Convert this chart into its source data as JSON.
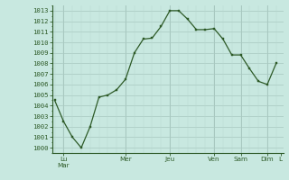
{
  "y_values": [
    1004.5,
    1002.5,
    1001.0,
    1000.0,
    1002.0,
    1004.8,
    1005.0,
    1005.5,
    1006.5,
    1009.0,
    1010.3,
    1010.4,
    1011.5,
    1013.0,
    1013.0,
    1012.2,
    1011.2,
    1011.2,
    1011.3,
    1010.3,
    1008.8,
    1008.8,
    1007.5,
    1006.3,
    1006.0,
    1008.0
  ],
  "ylim": [
    999.5,
    1013.5
  ],
  "yticks": [
    1000,
    1001,
    1002,
    1003,
    1004,
    1005,
    1006,
    1007,
    1008,
    1009,
    1010,
    1011,
    1012,
    1013
  ],
  "day_labels": [
    "Lu|Mar",
    "Mer",
    "Jeu",
    "Ven",
    "Sam",
    "Dim",
    "L"
  ],
  "day_tick_positions": [
    1,
    8,
    13,
    18,
    21,
    24,
    25.5
  ],
  "day_vline_positions": [
    1,
    8,
    13,
    18,
    21,
    24
  ],
  "line_color": "#2d5a27",
  "marker_color": "#2d5a27",
  "bg_color": "#c8e8e0",
  "grid_major_color": "#a8c8c0",
  "grid_minor_color": "#b8d8d0",
  "axis_color": "#2d5a27",
  "n_points": 26
}
